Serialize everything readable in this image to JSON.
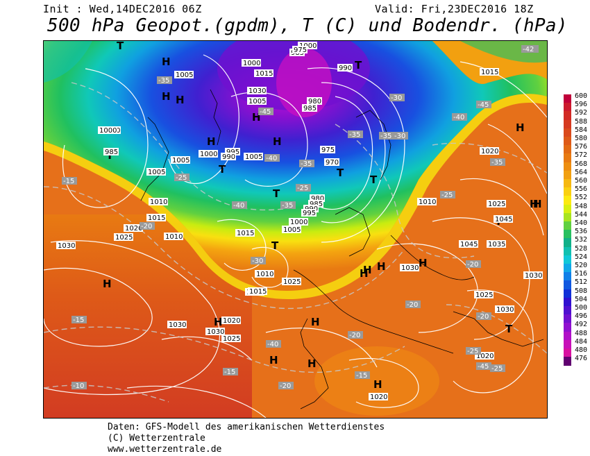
{
  "header": {
    "init": "Init : Wed,14DEC2016 06Z",
    "valid": "Valid: Fri,23DEC2016 18Z",
    "title": "500 hPa Geopot.(gpdm), T (C) und Bodendr. (hPa)"
  },
  "footer": {
    "line1": "Daten: GFS-Modell des amerikanischen Wetterdienstes",
    "line2": "(C) Wetterzentrale",
    "line3": "www.wetterzentrale.de"
  },
  "scale": {
    "values": [
      "600",
      "596",
      "592",
      "588",
      "584",
      "580",
      "576",
      "572",
      "568",
      "564",
      "560",
      "556",
      "552",
      "548",
      "544",
      "540",
      "536",
      "532",
      "528",
      "524",
      "520",
      "516",
      "512",
      "508",
      "504",
      "500",
      "496",
      "492",
      "488",
      "484",
      "480",
      "476"
    ],
    "colors": [
      "#c0003a",
      "#cc1a2e",
      "#d22a25",
      "#d63a20",
      "#da4a1c",
      "#de5a18",
      "#e26a14",
      "#e87a12",
      "#ee8e10",
      "#f2a010",
      "#f6b810",
      "#fad010",
      "#fcea10",
      "#d8f010",
      "#a8e420",
      "#60d040",
      "#28c060",
      "#10b088",
      "#10c0b0",
      "#10c8d8",
      "#10a8e8",
      "#1080e8",
      "#1058e0",
      "#1030d8",
      "#3010d0",
      "#5010d0",
      "#7010d0",
      "#9010d0",
      "#b010c8",
      "#c810b8",
      "#d810a0",
      "#600070"
    ]
  },
  "map_labels": {
    "highs": [
      "H",
      "H",
      "H",
      "H",
      "H",
      "H",
      "H",
      "H",
      "H",
      "H",
      "H",
      "H",
      "H",
      "H",
      "H",
      "H",
      "H",
      "H",
      "H"
    ],
    "lows": [
      "T",
      "T",
      "T",
      "T",
      "T",
      "T",
      "T",
      "T",
      "T",
      "T"
    ],
    "pressure": [
      "1000",
      "1005",
      "1000",
      "985",
      "1005",
      "1010",
      "1015",
      "1020",
      "1025",
      "1030",
      "1030",
      "1025",
      "1005",
      "1000",
      "995",
      "990",
      "1010",
      "1015",
      "1020",
      "985",
      "990",
      "1000",
      "975",
      "980",
      "985",
      "975",
      "970",
      "980",
      "985",
      "990",
      "995",
      "1000",
      "1005",
      "1010",
      "1015",
      "1020",
      "1025",
      "1045",
      "1045",
      "1035",
      "1030",
      "1025",
      "1030",
      "1020",
      "1015",
      "1015",
      "1020",
      "1030",
      "1000",
      "1015",
      "1030",
      "1025",
      "1030",
      "1010",
      "1005",
      "1005"
    ],
    "temps": [
      "-35",
      "-25",
      "-15",
      "-20",
      "-15",
      "-10",
      "-25",
      "-35",
      "-40",
      "-45",
      "-40",
      "-35",
      "-30",
      "-40",
      "-35",
      "-30",
      "-30",
      "-40",
      "-45",
      "-25",
      "-35",
      "-25",
      "-20",
      "-20",
      "-20",
      "-25",
      "-20",
      "-15",
      "-15",
      "-20",
      "-25",
      "-45",
      "-42",
      "-35"
    ]
  }
}
